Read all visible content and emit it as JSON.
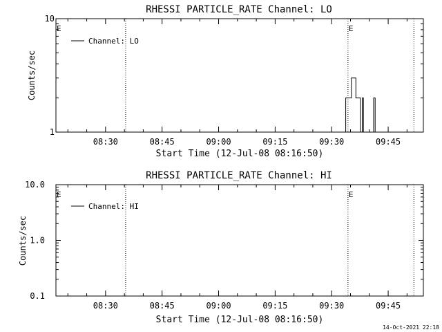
{
  "footer": {
    "timestamp": "14-Oct-2021 22:18"
  },
  "chart_data": [
    {
      "type": "line",
      "title": "RHESSI PARTICLE_RATE Channel: LO",
      "xlabel": "Start Time (12-Jul-08 08:16:50)",
      "ylabel": "Counts/sec",
      "y_scale": "log",
      "ylim": [
        1,
        10
      ],
      "ytick_labels": [
        "1",
        "10"
      ],
      "xtick_labels": [
        "08:30",
        "08:45",
        "09:00",
        "09:15",
        "09:30",
        "09:45"
      ],
      "xlim_minutes_after_start": [
        0,
        97.5
      ],
      "legend": {
        "entries": [
          "Channel: LO"
        ],
        "placement": "top-left"
      },
      "markers": [
        {
          "label": "E",
          "minute": 0.0
        },
        {
          "label": "",
          "minute": 18.5
        },
        {
          "label": "E",
          "minute": 77.5
        },
        {
          "label": "",
          "minute": 95.0
        }
      ],
      "series": [
        {
          "name": "Channel: LO",
          "points": [
            [
              76.9,
              1
            ],
            [
              76.9,
              2
            ],
            [
              78.4,
              2
            ],
            [
              78.4,
              3
            ],
            [
              79.6,
              3
            ],
            [
              79.6,
              2
            ],
            [
              80.8,
              2
            ],
            [
              80.8,
              1
            ],
            [
              81.3,
              1
            ],
            [
              81.3,
              2
            ],
            [
              81.6,
              2
            ],
            [
              81.6,
              1
            ],
            [
              84.3,
              1
            ],
            [
              84.3,
              2
            ],
            [
              84.7,
              2
            ],
            [
              84.7,
              1
            ]
          ]
        }
      ]
    },
    {
      "type": "line",
      "title": "RHESSI PARTICLE_RATE Channel: HI",
      "xlabel": "Start Time (12-Jul-08 08:16:50)",
      "ylabel": "Counts/sec",
      "y_scale": "log",
      "ylim": [
        0.1,
        10
      ],
      "ytick_labels": [
        "0.1",
        "1.0",
        "10.0"
      ],
      "xtick_labels": [
        "08:30",
        "08:45",
        "09:00",
        "09:15",
        "09:30",
        "09:45"
      ],
      "xlim_minutes_after_start": [
        0,
        97.5
      ],
      "legend": {
        "entries": [
          "Channel: HI"
        ],
        "placement": "top-left"
      },
      "markers": [
        {
          "label": "E",
          "minute": 0.0
        },
        {
          "label": "",
          "minute": 18.5
        },
        {
          "label": "E",
          "minute": 77.5
        },
        {
          "label": "",
          "minute": 95.0
        }
      ],
      "series": [
        {
          "name": "Channel: HI",
          "points": []
        }
      ]
    }
  ]
}
